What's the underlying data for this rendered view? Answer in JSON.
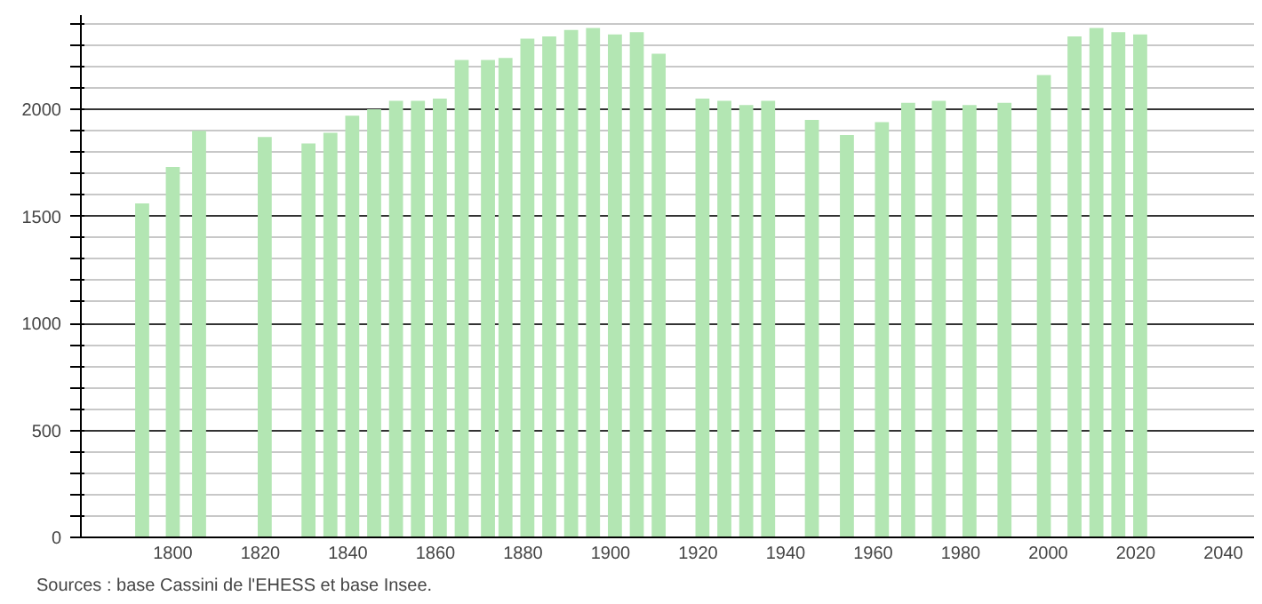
{
  "chart_data": {
    "type": "bar",
    "x": [
      1793,
      1800,
      1806,
      1821,
      1831,
      1836,
      1841,
      1846,
      1851,
      1856,
      1861,
      1866,
      1872,
      1876,
      1881,
      1886,
      1891,
      1896,
      1901,
      1906,
      1911,
      1921,
      1926,
      1931,
      1936,
      1946,
      1954,
      1962,
      1968,
      1975,
      1982,
      1990,
      1999,
      2006,
      2011,
      2016,
      2021
    ],
    "values": [
      1560,
      1730,
      1900,
      1870,
      1840,
      1890,
      1970,
      2000,
      2040,
      2040,
      2050,
      2230,
      2230,
      2240,
      2330,
      2340,
      2370,
      2380,
      2350,
      2360,
      2260,
      2050,
      2040,
      2020,
      2040,
      1950,
      1880,
      1940,
      2030,
      2040,
      2020,
      2030,
      2160,
      2340,
      2380,
      2360,
      2350
    ],
    "color": "#b3e6b3",
    "xlim": [
      1779,
      2047
    ],
    "xticks": [
      1800,
      1820,
      1840,
      1860,
      1880,
      1900,
      1920,
      1940,
      1960,
      1980,
      2000,
      2020,
      2040
    ],
    "ylim": [
      0,
      2440
    ],
    "yticks": [
      0,
      {
        "value": 100,
        "label": null
      },
      {
        "value": 200,
        "label": null
      },
      {
        "value": 300,
        "label": null
      },
      {
        "value": 400,
        "label": null
      },
      500,
      {
        "value": 600,
        "label": null
      },
      {
        "value": 700,
        "label": null
      },
      {
        "value": 800,
        "label": null
      },
      {
        "value": 900,
        "label": null
      },
      1000,
      {
        "value": 1100,
        "label": null
      },
      {
        "value": 1200,
        "label": null
      },
      {
        "value": 1300,
        "label": null
      },
      {
        "value": 1400,
        "label": null
      },
      1500,
      {
        "value": 1600,
        "label": null
      },
      {
        "value": 1700,
        "label": null
      },
      {
        "value": 1800,
        "label": null
      },
      {
        "value": 1900,
        "label": null
      },
      2000,
      {
        "value": 2100,
        "label": null
      },
      {
        "value": 2200,
        "label": null
      },
      {
        "value": 2300,
        "label": null
      },
      {
        "value": 2400,
        "label": null
      }
    ],
    "grid": "y",
    "annotations": [
      "Sources : base Cassini de l'EHESS et base Insee."
    ]
  }
}
